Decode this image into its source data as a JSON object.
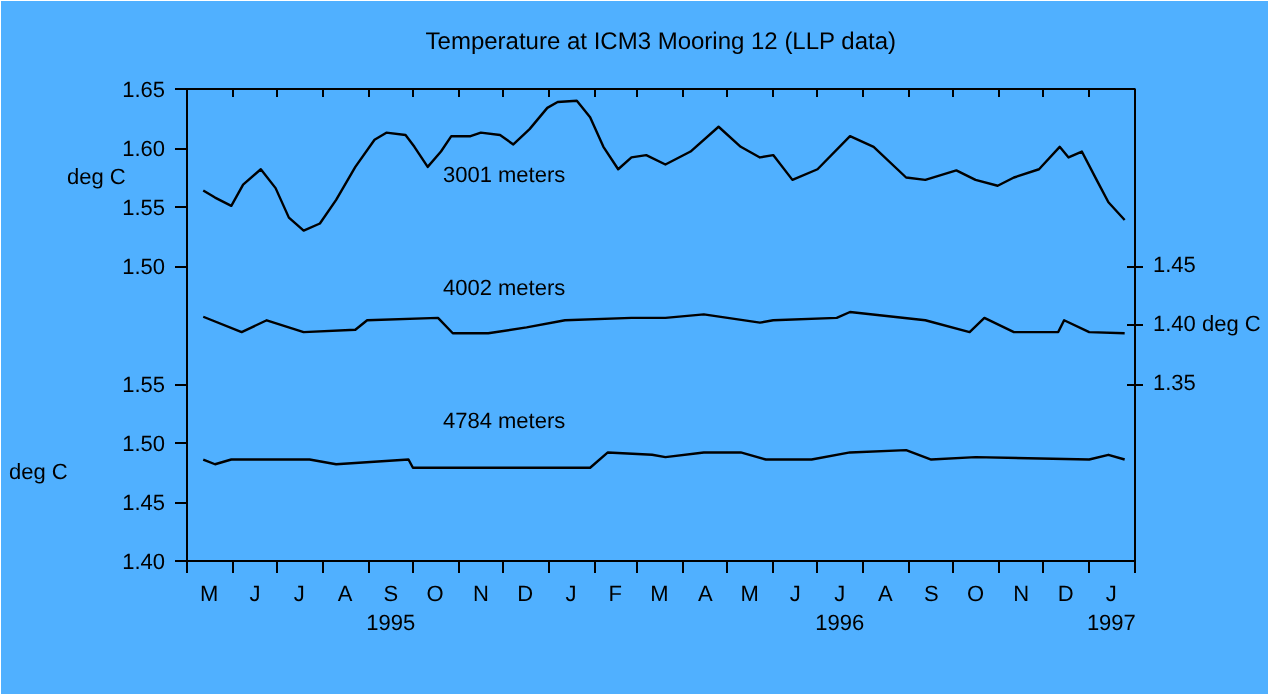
{
  "chart_data": {
    "type": "line",
    "title": "Temperature at ICM3 Mooring 12 (LLP data)",
    "ylabel": "deg C",
    "y3label": "deg C",
    "xlim": [
      "1995-05-01",
      "1997-02-01"
    ],
    "xticks": [
      {
        "value": "1995-05-01",
        "label": null
      },
      {
        "value": "1995-05-16",
        "label": "M"
      },
      {
        "value": "1995-06-01",
        "label": null
      },
      {
        "value": "1995-06-16",
        "label": "J"
      },
      {
        "value": "1995-07-01",
        "label": null
      },
      {
        "value": "1995-07-16",
        "label": "J"
      },
      {
        "value": "1995-08-01",
        "label": null
      },
      {
        "value": "1995-08-16",
        "label": "A"
      },
      {
        "value": "1995-09-01",
        "label": null
      },
      {
        "value": "1995-09-16",
        "label": "S\n1995"
      },
      {
        "value": "1995-10-01",
        "label": null
      },
      {
        "value": "1995-10-16",
        "label": "O"
      },
      {
        "value": "1995-11-01",
        "label": null
      },
      {
        "value": "1995-11-16",
        "label": "N"
      },
      {
        "value": "1995-12-01",
        "label": null
      },
      {
        "value": "1995-12-16",
        "label": "D"
      },
      {
        "value": "1996-01-01",
        "label": null
      },
      {
        "value": "1996-01-16",
        "label": "J"
      },
      {
        "value": "1996-02-01",
        "label": null
      },
      {
        "value": "1996-02-15",
        "label": "F"
      },
      {
        "value": "1996-03-01",
        "label": null
      },
      {
        "value": "1996-03-16",
        "label": "M"
      },
      {
        "value": "1996-04-01",
        "label": null
      },
      {
        "value": "1996-04-16",
        "label": "A"
      },
      {
        "value": "1996-05-01",
        "label": null
      },
      {
        "value": "1996-05-16",
        "label": "M"
      },
      {
        "value": "1996-06-01",
        "label": null
      },
      {
        "value": "1996-06-16",
        "label": "J"
      },
      {
        "value": "1996-07-01",
        "label": null
      },
      {
        "value": "1996-07-16",
        "label": "J\n1996"
      },
      {
        "value": "1996-08-01",
        "label": null
      },
      {
        "value": "1996-08-16",
        "label": "A"
      },
      {
        "value": "1996-09-01",
        "label": null
      },
      {
        "value": "1996-09-16",
        "label": "S"
      },
      {
        "value": "1996-10-01",
        "label": null
      },
      {
        "value": "1996-10-16",
        "label": "O"
      },
      {
        "value": "1996-11-01",
        "label": null
      },
      {
        "value": "1996-11-16",
        "label": "N"
      },
      {
        "value": "1996-12-01",
        "label": null
      },
      {
        "value": "1996-12-16",
        "label": "D"
      },
      {
        "value": "1997-01-01",
        "label": null
      },
      {
        "value": "1997-01-16",
        "label": "J\n1997"
      },
      {
        "value": "1997-02-01",
        "label": null
      }
    ],
    "ylim": [
      1.25,
      1.65
    ],
    "yticks": [
      {
        "value": 1.5,
        "label": "1.50"
      },
      1.55,
      {
        "value": 1.6,
        "label": "1.60"
      },
      1.65
    ],
    "y2lim": [
      1.2,
      1.6
    ],
    "y2ticks": [
      1.35,
      {
        "value": 1.4,
        "label": "1.40 deg C"
      },
      1.45
    ],
    "y3lim": [
      1.4,
      1.8
    ],
    "y3ticks": [
      {
        "value": 1.4,
        "label": "1.40"
      },
      1.45,
      {
        "value": 1.5,
        "label": "1.50"
      },
      1.55
    ],
    "grid": false,
    "marker": "none",
    "line_style": "solid",
    "series": [
      {
        "name": "3001 meters",
        "color": "#000000",
        "axis": "y",
        "x": [
          "1995-05-12",
          "1995-05-20",
          "1995-05-31",
          "1995-06-08",
          "1995-06-20",
          "1995-06-30",
          "1995-07-09",
          "1995-07-19",
          "1995-07-30",
          "1995-08-10",
          "1995-08-23",
          "1995-09-05",
          "1995-09-13",
          "1995-09-26",
          "1995-10-02",
          "1995-10-11",
          "1995-10-20",
          "1995-10-27",
          "1995-11-09",
          "1995-11-16",
          "1995-11-29",
          "1995-12-08",
          "1995-12-19",
          "1995-12-31",
          "1996-01-07",
          "1996-01-20",
          "1996-01-29",
          "1996-02-07",
          "1996-02-17",
          "1996-02-26",
          "1996-03-07",
          "1996-03-20",
          "1996-04-06",
          "1996-04-25",
          "1996-05-10",
          "1996-05-23",
          "1996-06-01",
          "1996-06-14",
          "1996-07-01",
          "1996-07-23",
          "1996-08-08",
          "1996-08-30",
          "1996-09-12",
          "1996-10-03",
          "1996-10-16",
          "1996-10-31",
          "1996-11-11",
          "1996-11-28",
          "1996-12-12",
          "1996-12-18",
          "1996-12-27",
          "1997-01-06",
          "1997-01-14",
          "1997-01-25"
        ],
        "values": [
          1.564,
          1.558,
          1.551,
          1.569,
          1.582,
          1.566,
          1.541,
          1.53,
          1.536,
          1.556,
          1.584,
          1.607,
          1.613,
          1.611,
          1.601,
          1.584,
          1.597,
          1.61,
          1.61,
          1.613,
          1.611,
          1.603,
          1.616,
          1.634,
          1.639,
          1.64,
          1.626,
          1.601,
          1.582,
          1.592,
          1.594,
          1.586,
          1.597,
          1.618,
          1.601,
          1.592,
          1.594,
          1.573,
          1.582,
          1.61,
          1.601,
          1.575,
          1.573,
          1.581,
          1.573,
          1.568,
          1.575,
          1.582,
          1.601,
          1.592,
          1.597,
          1.573,
          1.554,
          1.539
        ]
      },
      {
        "name": "4002 meters",
        "color": "#000000",
        "axis": "y2",
        "x": [
          "1995-05-12",
          "1995-06-07",
          "1995-06-24",
          "1995-07-19",
          "1995-08-23",
          "1995-08-31",
          "1995-10-18",
          "1995-10-28",
          "1995-11-21",
          "1995-12-17",
          "1996-01-12",
          "1996-02-26",
          "1996-03-20",
          "1996-04-15",
          "1996-05-23",
          "1996-06-01",
          "1996-07-14",
          "1996-07-23",
          "1996-09-12",
          "1996-10-12",
          "1996-10-22",
          "1996-11-11",
          "1996-12-11",
          "1996-12-15",
          "1997-01-01",
          "1997-01-25"
        ],
        "values": [
          1.407,
          1.394,
          1.404,
          1.394,
          1.396,
          1.404,
          1.406,
          1.393,
          1.393,
          1.398,
          1.404,
          1.406,
          1.406,
          1.409,
          1.402,
          1.404,
          1.406,
          1.411,
          1.404,
          1.394,
          1.406,
          1.394,
          1.394,
          1.404,
          1.394,
          1.393
        ]
      },
      {
        "name": "4784 meters",
        "color": "#000000",
        "axis": "y3",
        "x": [
          "1995-05-12",
          "1995-05-20",
          "1995-05-31",
          "1995-07-23",
          "1995-08-10",
          "1995-09-28",
          "1995-10-01",
          "1996-01-29",
          "1996-02-10",
          "1996-03-11",
          "1996-03-20",
          "1996-04-15",
          "1996-05-10",
          "1996-05-27",
          "1996-06-27",
          "1996-07-23",
          "1996-08-30",
          "1996-09-16",
          "1996-10-16",
          "1997-01-01",
          "1997-01-14",
          "1997-01-25"
        ],
        "values": [
          1.486,
          1.482,
          1.486,
          1.486,
          1.482,
          1.486,
          1.479,
          1.479,
          1.492,
          1.49,
          1.488,
          1.492,
          1.492,
          1.486,
          1.486,
          1.492,
          1.494,
          1.486,
          1.488,
          1.486,
          1.49,
          1.486
        ]
      }
    ]
  }
}
